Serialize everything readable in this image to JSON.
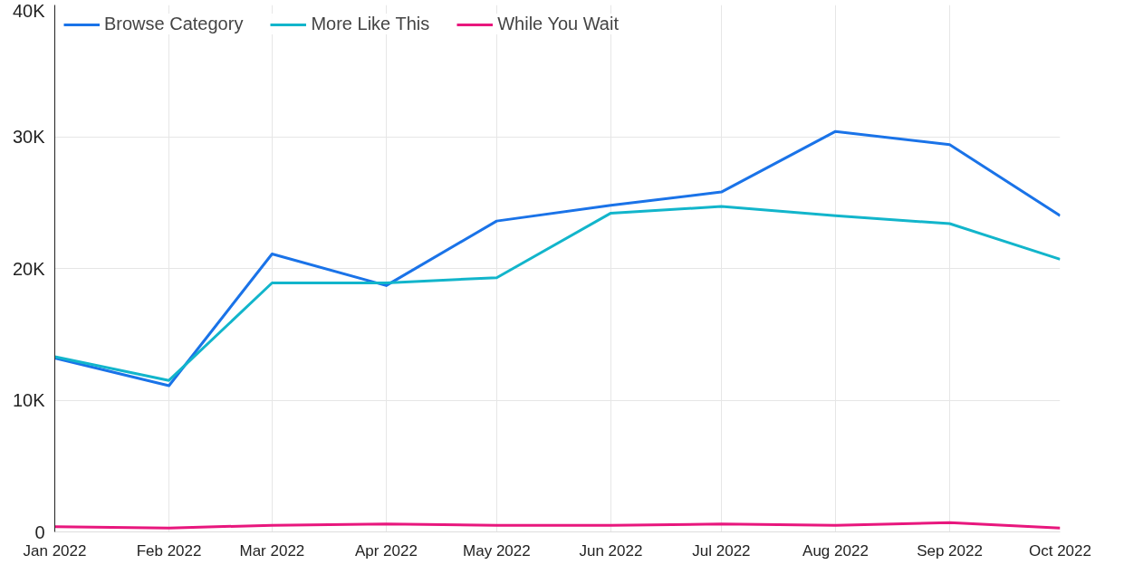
{
  "chart_data": {
    "type": "line",
    "x": [
      "2022-01",
      "2022-02",
      "2022-03",
      "2022-04",
      "2022-05",
      "2022-06",
      "2022-07",
      "2022-08",
      "2022-09",
      "2022-10"
    ],
    "series": [
      {
        "name": "Browse Category",
        "color": "#1a73e8",
        "values": [
          13200,
          11100,
          21100,
          18700,
          23600,
          24800,
          25800,
          30400,
          29400,
          24000
        ]
      },
      {
        "name": "More Like This",
        "color": "#12b5cb",
        "values": [
          13300,
          11500,
          18900,
          18900,
          19300,
          24200,
          24700,
          24000,
          23400,
          20700
        ]
      },
      {
        "name": "While You Wait",
        "color": "#e8177d",
        "values": [
          400,
          300,
          500,
          600,
          500,
          500,
          600,
          500,
          700,
          300
        ]
      }
    ],
    "xlim": [
      "2022-01",
      "2022-10"
    ],
    "xticks": [
      {
        "value": "2022-01",
        "label": "Jan 2022"
      },
      {
        "value": "2022-02",
        "label": "Feb 2022"
      },
      {
        "value": "2022-03",
        "label": "Mar 2022"
      },
      {
        "value": "2022-04",
        "label": "Apr 2022"
      },
      {
        "value": "2022-05",
        "label": "May 2022"
      },
      {
        "value": "2022-06",
        "label": "Jun 2022"
      },
      {
        "value": "2022-07",
        "label": "Jul 2022"
      },
      {
        "value": "2022-08",
        "label": "Aug 2022"
      },
      {
        "value": "2022-09",
        "label": "Sep 2022"
      },
      {
        "value": "2022-10",
        "label": "Oct 2022"
      }
    ],
    "ylim": [
      0,
      40000
    ],
    "yticks": [
      {
        "value": 0,
        "label": "0"
      },
      {
        "value": 10000,
        "label": "10K"
      },
      {
        "value": 20000,
        "label": "20K"
      },
      {
        "value": 30000,
        "label": "30K"
      },
      {
        "value": 40000,
        "label": "40K"
      }
    ],
    "grid": true,
    "legend": "top left",
    "marker": "none",
    "line_style": "solid"
  }
}
